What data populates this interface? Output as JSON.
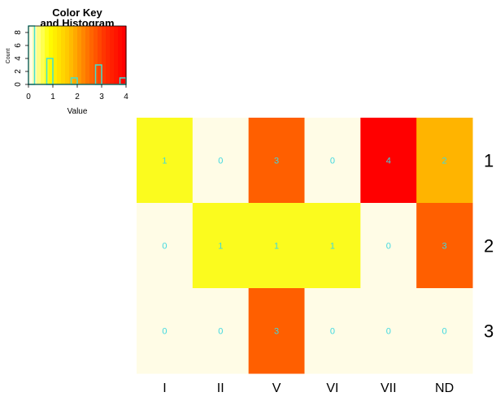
{
  "chart_data": [
    {
      "type": "histogram",
      "title_line1": "Color Key",
      "title_line2": "and Histogram",
      "xlabel": "Value",
      "ylabel": "Count",
      "xlim": [
        0,
        4
      ],
      "ylim": [
        0,
        9
      ],
      "x_ticks": [
        "0",
        "1",
        "2",
        "3",
        "4"
      ],
      "y_ticks": [
        "0",
        "2",
        "4",
        "6",
        "8"
      ],
      "bins": [
        {
          "from": 0.0,
          "to": 0.25,
          "count": 9
        },
        {
          "from": 0.75,
          "to": 1.0,
          "count": 4
        },
        {
          "from": 1.75,
          "to": 2.0,
          "count": 1
        },
        {
          "from": 2.75,
          "to": 3.0,
          "count": 3
        },
        {
          "from": 3.75,
          "to": 4.0,
          "count": 1
        }
      ],
      "histogram_color": "#40e0d0",
      "color_scale": [
        "#fffee4",
        "#ffff00",
        "#ffc800",
        "#ff7800",
        "#ff3000",
        "#ff0000"
      ]
    },
    {
      "type": "heatmap",
      "columns": [
        "I",
        "II",
        "V",
        "VI",
        "VII",
        "ND"
      ],
      "rows": [
        "1",
        "2",
        "3"
      ],
      "values": [
        [
          1,
          0,
          3,
          0,
          4,
          2
        ],
        [
          0,
          1,
          1,
          1,
          0,
          3
        ],
        [
          0,
          0,
          3,
          0,
          0,
          0
        ]
      ],
      "cell_colors": {
        "0": "#fffce6",
        "1": "#fbfb1e",
        "2": "#ffb400",
        "3": "#ff5f00",
        "4": "#ff0000"
      },
      "cell_label_color": "#40d8e0"
    }
  ]
}
